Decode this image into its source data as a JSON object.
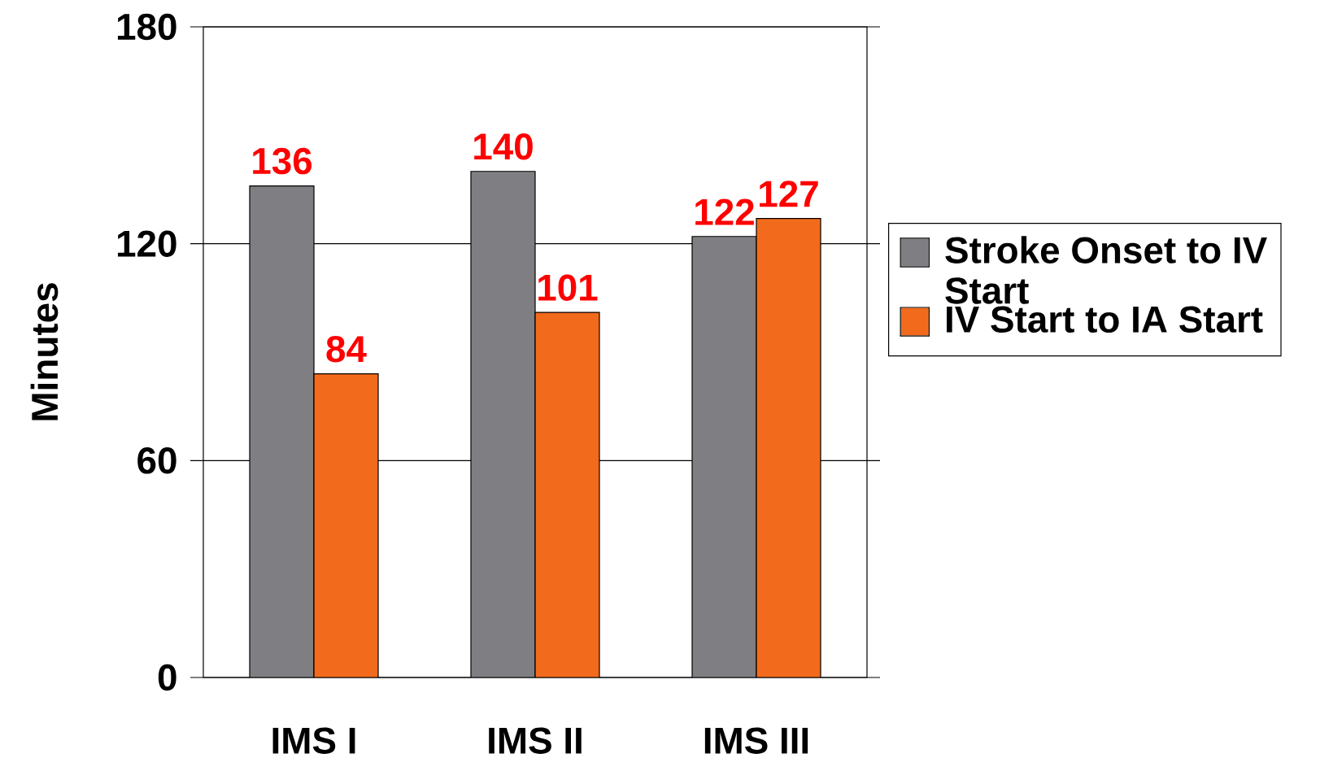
{
  "chart_data": {
    "type": "bar",
    "categories": [
      "IMS I",
      "IMS II",
      "IMS III"
    ],
    "ylabel": "Minutes",
    "series": [
      {
        "name": "Stroke Onset to IV Start",
        "color": "#7f7f83",
        "values": [
          136,
          140,
          122
        ]
      },
      {
        "name": "IV Start to IA Start",
        "color": "#f26b1d",
        "values": [
          84,
          101,
          127
        ]
      }
    ],
    "ylim": [
      0,
      180
    ],
    "yticks": [
      0,
      60,
      120,
      180
    ],
    "grid": "y",
    "legend": "right",
    "data_labels": true
  }
}
